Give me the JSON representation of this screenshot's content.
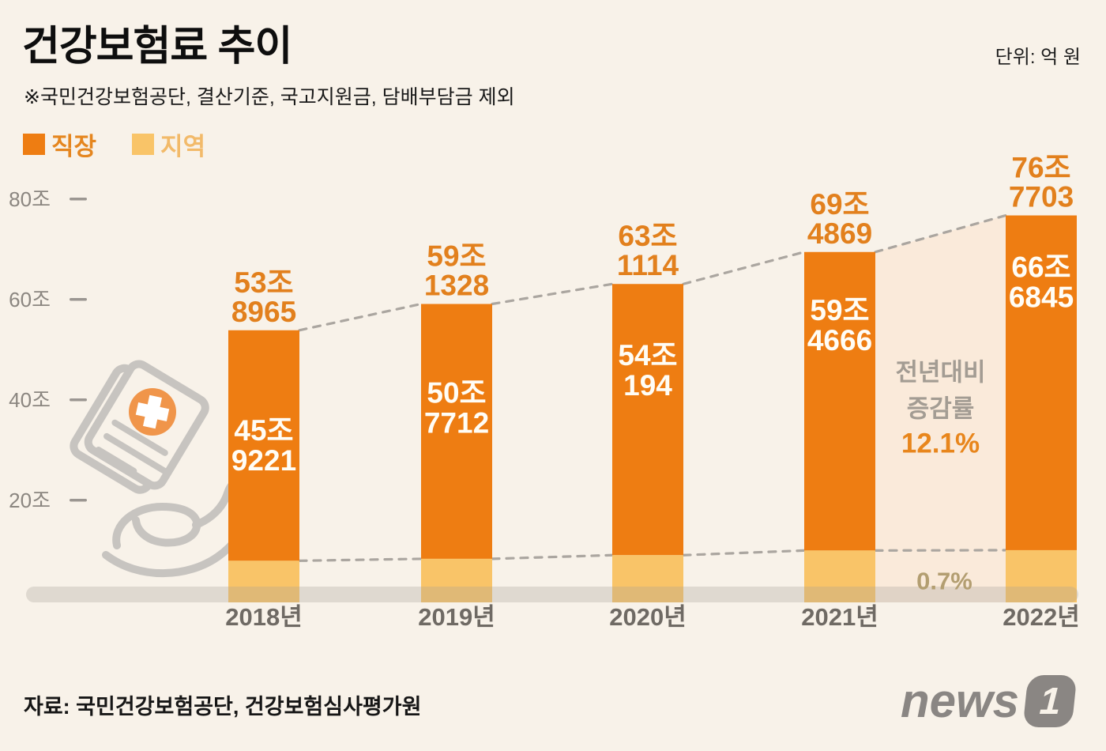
{
  "header": {
    "title": "건강보험료 추이",
    "unit_note": "단위: 억 원",
    "source_note": "※국민건강보험공단, 결산기준, 국고지원금, 담배부담금 제외"
  },
  "legend": {
    "items": [
      {
        "label": "직장",
        "swatch_color": "#EE7D12",
        "label_color": "#E5861F"
      },
      {
        "label": "지역",
        "swatch_color": "#F9C468",
        "label_color": "#F2BA6A"
      }
    ]
  },
  "chart_data": {
    "type": "bar",
    "stacked": true,
    "title": "건강보험료 추이",
    "unit": "억 원",
    "categories": [
      "2018년",
      "2019년",
      "2020년",
      "2021년",
      "2022년"
    ],
    "series": [
      {
        "name": "직장",
        "color": "#EE7D12",
        "values": [
          459221,
          507712,
          540194,
          594666,
          666845
        ]
      },
      {
        "name": "지역",
        "color": "#F9C468",
        "values": [
          79744,
          83616,
          90920,
          100203,
          100858
        ]
      }
    ],
    "totals": [
      538965,
      591328,
      631114,
      694869,
      767703
    ],
    "y_axis": {
      "ticks": [
        {
          "value": 200000,
          "label": "20조"
        },
        {
          "value": 400000,
          "label": "40조"
        },
        {
          "value": 600000,
          "label": "60조"
        },
        {
          "value": 800000,
          "label": "80조"
        }
      ],
      "range": [
        0,
        850000
      ]
    },
    "grid": false,
    "legend_position": "top-left",
    "annotation": {
      "title_line1": "전년대비",
      "title_line2": "증감률",
      "employee_change": "12.1%",
      "regional_change": "0.7%",
      "highlight_between": [
        "2021년",
        "2022년"
      ]
    }
  },
  "footer": {
    "source": "자료: 국민건강보험공단, 건강보험심사평가원",
    "logo": {
      "text": "news",
      "badge": "1"
    }
  },
  "colors": {
    "background": "#F8F2E9",
    "employee_bar": "#EE7D12",
    "regional_bar": "#F9C468",
    "total_label": "#E2801D",
    "inner_label": "#FFFDF6",
    "highlight_band": "#FAEADA",
    "dashed_line": "#ABA6A0",
    "axis_text": "#8B8680",
    "category_text": "#6F6A64",
    "annotation_gray": "#A39C93",
    "annotation_orange": "#E8861C",
    "regional_change_text": "#B39E71",
    "baseline_bar": "rgba(167,160,151,0.30)",
    "icon_gray": "#C7C4C0",
    "icon_orange": "#F0954A",
    "logo_gray": "#8A8683"
  }
}
